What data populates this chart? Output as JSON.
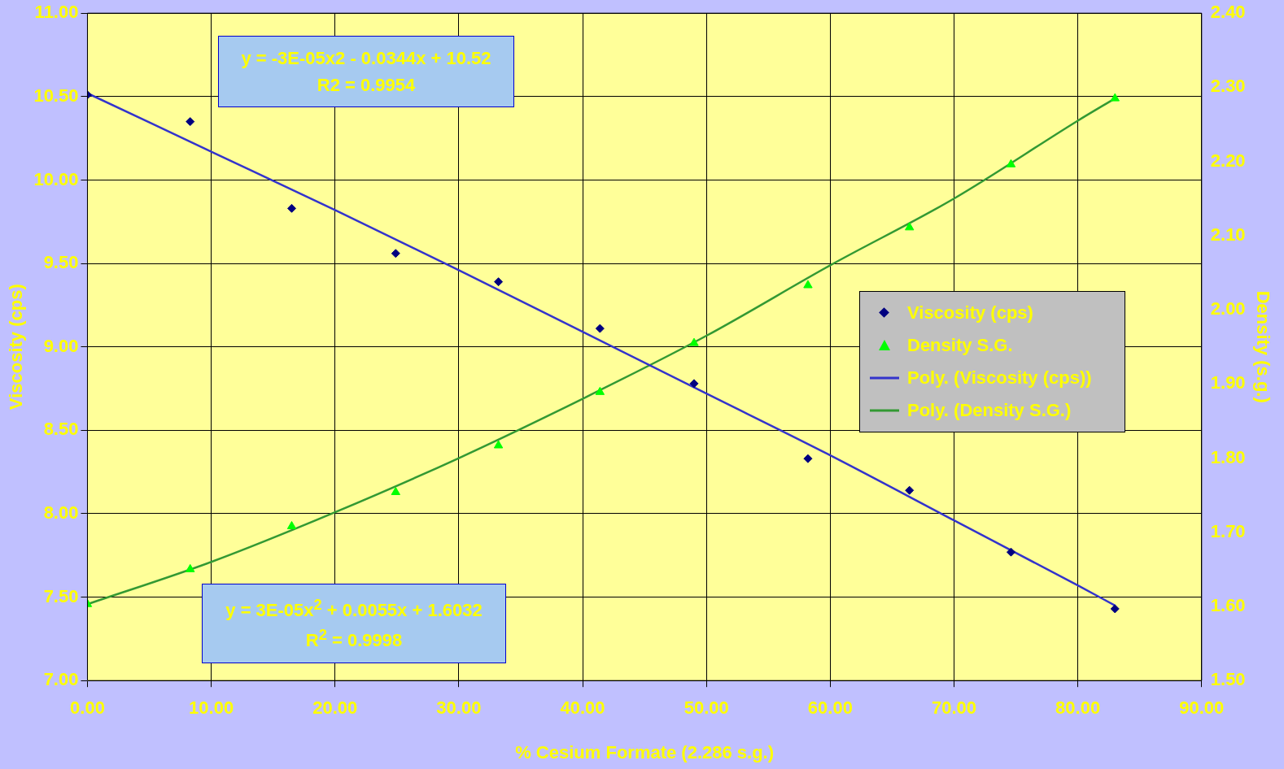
{
  "chart_data": {
    "type": "scatter",
    "xlabel": "% Cesium Formate (2.286 s.g.)",
    "ylabel": "Viscosity (cps)",
    "y2label": "Density (s.g.)",
    "xlim": [
      0,
      90
    ],
    "xticks": [
      {
        "value": 0,
        "label": "0.00"
      },
      {
        "value": 10,
        "label": "10.00"
      },
      {
        "value": 20,
        "label": "20.00"
      },
      {
        "value": 30,
        "label": "30.00"
      },
      {
        "value": 40,
        "label": "40.00"
      },
      {
        "value": 50,
        "label": "50.00"
      },
      {
        "value": 60,
        "label": "60.00"
      },
      {
        "value": 70,
        "label": "70.00"
      },
      {
        "value": 80,
        "label": "80.00"
      },
      {
        "value": 90,
        "label": "90.00"
      }
    ],
    "ylim": [
      7,
      11
    ],
    "yticks": [
      {
        "value": 7,
        "label": "7.00"
      },
      {
        "value": 7.5,
        "label": "7.50"
      },
      {
        "value": 8,
        "label": "8.00"
      },
      {
        "value": 8.5,
        "label": "8.50"
      },
      {
        "value": 9,
        "label": "9.00"
      },
      {
        "value": 9.5,
        "label": "9.50"
      },
      {
        "value": 10,
        "label": "10.00"
      },
      {
        "value": 10.5,
        "label": "10.50"
      },
      {
        "value": 11,
        "label": "11.00"
      }
    ],
    "y2lim": [
      1.5,
      2.4
    ],
    "y2ticks": [
      {
        "value": 1.5,
        "label": "1.50"
      },
      {
        "value": 1.6,
        "label": "1.60"
      },
      {
        "value": 1.7,
        "label": "1.70"
      },
      {
        "value": 1.8,
        "label": "1.80"
      },
      {
        "value": 1.9,
        "label": "1.90"
      },
      {
        "value": 2.0,
        "label": "2.00"
      },
      {
        "value": 2.1,
        "label": "2.10"
      },
      {
        "value": 2.2,
        "label": "2.20"
      },
      {
        "value": 2.3,
        "label": "2.30"
      },
      {
        "value": 2.4,
        "label": "2.40"
      }
    ],
    "grid": true,
    "legend": "right",
    "series": [
      {
        "name": "Viscosity (cps)",
        "type": "scatter",
        "marker": "diamond",
        "color": "#000080",
        "x": [
          0,
          8.3,
          16.5,
          24.9,
          33.2,
          41.4,
          49.0,
          58.2,
          66.4,
          74.6,
          83.0
        ],
        "values": [
          10.51,
          10.35,
          9.83,
          9.56,
          9.39,
          9.11,
          8.78,
          8.33,
          8.14,
          7.77,
          7.43
        ]
      },
      {
        "name": "Density S.G.",
        "type": "scatter",
        "marker": "triangle",
        "axis": "y2",
        "color": "#00ff00",
        "x": [
          0,
          8.3,
          16.5,
          24.9,
          33.2,
          41.4,
          49.0,
          58.2,
          66.4,
          74.6,
          83.0
        ],
        "values": [
          1.603,
          1.65,
          1.708,
          1.754,
          1.817,
          1.889,
          1.955,
          2.033,
          2.111,
          2.196,
          2.285
        ]
      },
      {
        "name": "Poly. (Viscosity (cps))",
        "type": "line",
        "marker": "none",
        "color": "#3333cc",
        "x": [
          0,
          10,
          20,
          30,
          40,
          50,
          60,
          70,
          80,
          83
        ],
        "values": [
          10.52,
          10.17,
          9.82,
          9.46,
          9.09,
          8.72,
          8.35,
          7.96,
          7.57,
          7.45
        ]
      },
      {
        "name": "Poly. (Density S.G.)",
        "type": "line",
        "marker": "none",
        "axis": "y2",
        "color": "#339933",
        "x": [
          0,
          10,
          20,
          30,
          40,
          50,
          60,
          70,
          80,
          83
        ],
        "values": [
          1.603,
          1.66,
          1.727,
          1.8,
          1.88,
          1.965,
          2.06,
          2.15,
          2.255,
          2.285
        ]
      }
    ],
    "annotations": [
      "y = -3E-05x2 - 0.0344x + 10.52\nR2 = 0.9954",
      "y = 3E-05x$^{2}$ + 0.0055x + 1.6032\nR$^{2}$ = 0.9998"
    ]
  }
}
